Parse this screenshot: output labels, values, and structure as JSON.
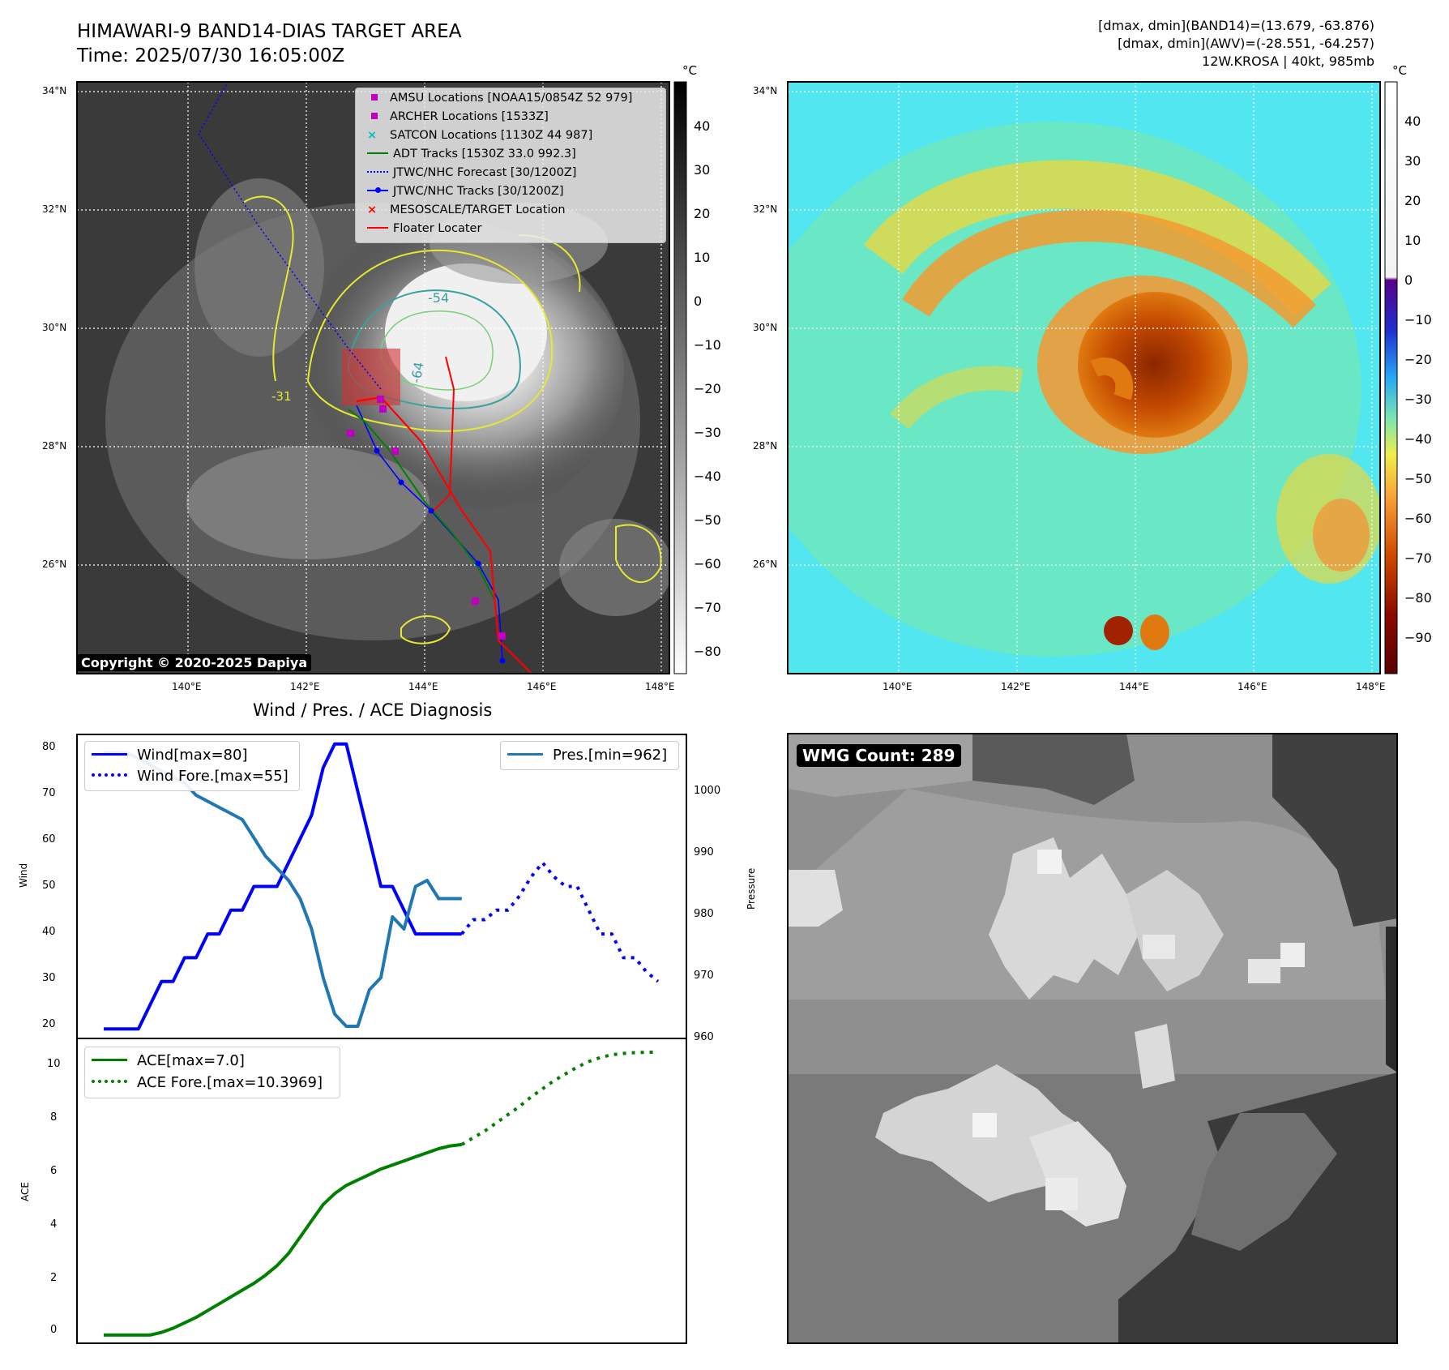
{
  "header": {
    "title": "HIMAWARI-9 BAND14-DIAS TARGET AREA",
    "time": "Time: 2025/07/30 16:05:00Z",
    "dmax_band14": "[dmax, dmin](BAND14)=(13.679, -63.876)",
    "dmax_awv": "[dmax, dmin](AWV)=(-28.551, -64.257)",
    "storm": "12W.KROSA | 40kt, 985mb"
  },
  "map": {
    "lat_ticks": [
      "34°N",
      "32°N",
      "30°N",
      "28°N",
      "26°N"
    ],
    "lon_ticks": [
      "140°E",
      "142°E",
      "144°E",
      "146°E",
      "148°E"
    ],
    "copyright": "Copyright © 2020-2025 Dapiya",
    "legend": [
      {
        "label": "AMSU Locations [NOAA15/0854Z 52 979]",
        "color": "#c000c0",
        "kind": "square"
      },
      {
        "label": "ARCHER Locations [1533Z]",
        "color": "#c000c0",
        "kind": "square"
      },
      {
        "label": "SATCON Locations [1130Z 44 987]",
        "color": "#00c0c0",
        "kind": "x"
      },
      {
        "label": "ADT Tracks [1530Z 33.0 992.3]",
        "color": "#008000",
        "kind": "line"
      },
      {
        "label": "JTWC/NHC Forecast [30/1200Z]",
        "color": "#0000ff",
        "kind": "dotted"
      },
      {
        "label": "JTWC/NHC Tracks [30/1200Z]",
        "color": "#0000ff",
        "kind": "line-dot"
      },
      {
        "label": "MESOSCALE/TARGET Location",
        "color": "#ff0000",
        "kind": "x"
      },
      {
        "label": "Floater Locater",
        "color": "#ff0000",
        "kind": "line"
      }
    ],
    "contour_labels": [
      "-54",
      "-64",
      "-31"
    ],
    "cb1_unit": "°C",
    "cb1_ticks": [
      "40",
      "30",
      "20",
      "10",
      "0",
      "−10",
      "−20",
      "−30",
      "−40",
      "−50",
      "−60",
      "−70",
      "−80"
    ],
    "cb2_unit": "°C",
    "cb2_ticks": [
      "40",
      "30",
      "20",
      "10",
      "0",
      "−10",
      "−20",
      "−30",
      "−40",
      "−50",
      "−60",
      "−70",
      "−80",
      "−90"
    ]
  },
  "diag": {
    "title": "Wind / Pres. / ACE Diagnosis",
    "wind_ylabel": "Wind",
    "pres_ylabel": "Pressure",
    "ace_ylabel": "ACE",
    "wind_ticks": [
      "80",
      "70",
      "60",
      "50",
      "40",
      "30",
      "20"
    ],
    "pres_ticks": [
      "1000",
      "990",
      "980",
      "970",
      "960"
    ],
    "ace_ticks": [
      "10",
      "8",
      "6",
      "4",
      "2",
      "0"
    ],
    "legend_wind": "Wind[max=80]",
    "legend_wind_fore": "Wind Fore.[max=55]",
    "legend_pres": "Pres.[min=962]",
    "legend_ace": "ACE[max=7.0]",
    "legend_ace_fore": "ACE Fore.[max=10.3969]",
    "wmg_label": "WMG Count: 289"
  },
  "chart_data": [
    {
      "type": "line",
      "title": "Wind / Pres. / ACE Diagnosis",
      "ylabel": "Wind",
      "ylim": [
        18,
        82
      ],
      "series": [
        {
          "name": "Wind[max=80]",
          "color": "#0000ff",
          "style": "solid",
          "values": [
            20,
            20,
            20,
            20,
            25,
            30,
            30,
            35,
            35,
            40,
            40,
            45,
            45,
            50,
            50,
            50,
            55,
            60,
            65,
            75,
            80,
            80,
            70,
            60,
            50,
            50,
            45,
            40,
            40,
            40,
            40,
            40
          ]
        },
        {
          "name": "Wind Fore.[max=55]",
          "color": "#0000ff",
          "style": "dotted",
          "start": 31,
          "values": [
            40,
            43,
            43,
            45,
            45,
            48,
            52,
            55,
            52,
            50,
            50,
            45,
            40,
            40,
            35,
            35,
            32,
            30
          ]
        }
      ]
    },
    {
      "type": "line",
      "ylabel": "Pressure",
      "ylim": [
        960,
        1010
      ],
      "series": [
        {
          "name": "Pres.[min=962]",
          "color": "#1f77b4",
          "style": "solid",
          "values": [
            1007,
            1007,
            1007,
            1006,
            1005,
            1004,
            1003,
            1002,
            1000,
            999,
            998,
            997,
            996,
            993,
            990,
            988,
            986,
            983,
            978,
            970,
            964,
            962,
            962,
            968,
            970,
            980,
            978,
            985,
            986,
            983,
            983,
            983
          ]
        }
      ]
    },
    {
      "type": "line",
      "ylabel": "ACE",
      "ylim": [
        -0.3,
        10.9
      ],
      "series": [
        {
          "name": "ACE[max=7.0]",
          "color": "#008000",
          "style": "solid",
          "values": [
            0,
            0,
            0,
            0,
            0,
            0.1,
            0.25,
            0.45,
            0.65,
            0.9,
            1.15,
            1.4,
            1.65,
            1.9,
            2.2,
            2.55,
            3.0,
            3.6,
            4.2,
            4.8,
            5.2,
            5.5,
            5.7,
            5.9,
            6.1,
            6.25,
            6.4,
            6.55,
            6.7,
            6.85,
            6.95,
            7.0
          ]
        },
        {
          "name": "ACE Fore.[max=10.3969]",
          "color": "#008000",
          "style": "dotted",
          "start": 31,
          "values": [
            7.0,
            7.25,
            7.5,
            7.8,
            8.1,
            8.4,
            8.75,
            9.05,
            9.35,
            9.6,
            9.85,
            10.05,
            10.2,
            10.3,
            10.35,
            10.38,
            10.39,
            10.3969
          ]
        }
      ]
    }
  ]
}
